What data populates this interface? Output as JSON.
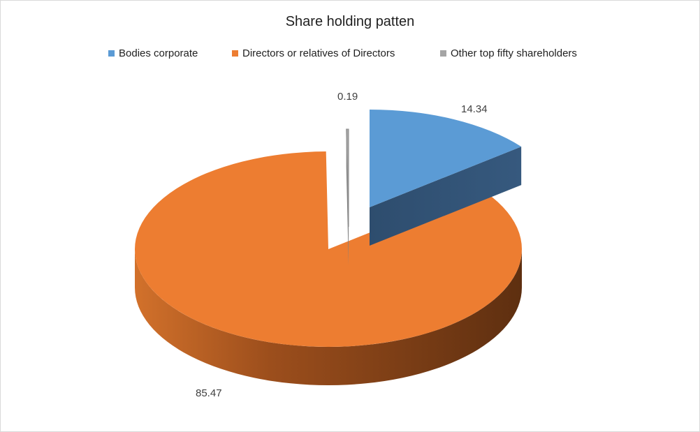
{
  "chart_data": {
    "type": "pie",
    "title": "Share holding patten",
    "categories": [
      "Bodies corporate",
      "Directors or relatives of Directors",
      "Other top fifty shareholders"
    ],
    "values": [
      14.34,
      85.47,
      0.19
    ],
    "data_labels": [
      "14.34",
      "85.47",
      "0.19"
    ],
    "colors": {
      "Bodies corporate": "#5b9bd5",
      "Directors or relatives of Directors": "#ed7d31",
      "Other top fifty shareholders": "#a5a5a5"
    },
    "style": "3d-exploded",
    "legend": "top"
  }
}
